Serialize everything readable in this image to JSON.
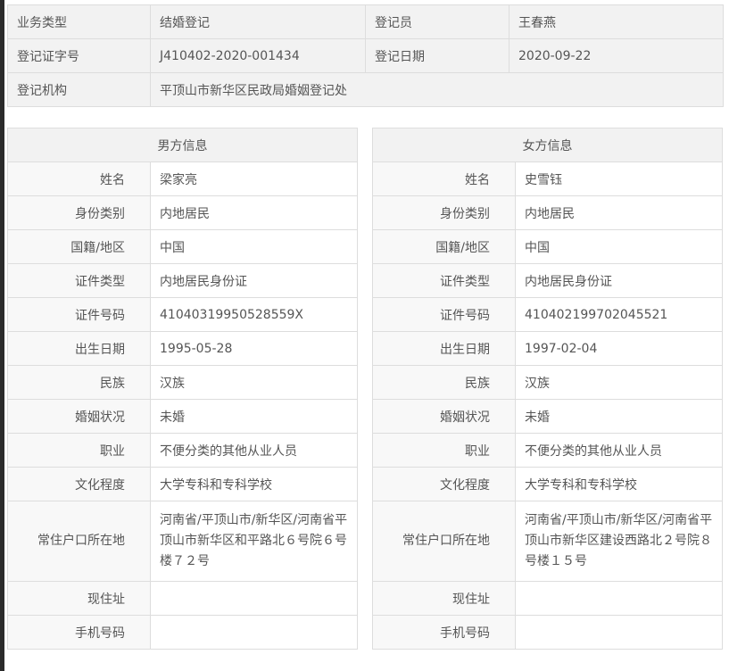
{
  "summary": {
    "business_type_label": "业务类型",
    "business_type": "结婚登记",
    "registrar_label": "登记员",
    "registrar": "王春燕",
    "cert_no_label": "登记证字号",
    "cert_no": "J410402-2020-001434",
    "date_label": "登记日期",
    "date": "2020-09-22",
    "org_label": "登记机构",
    "org": "平顶山市新华区民政局婚姻登记处"
  },
  "labels": [
    "姓名",
    "身份类别",
    "国籍/地区",
    "证件类型",
    "证件号码",
    "出生日期",
    "民族",
    "婚姻状况",
    "职业",
    "文化程度",
    "常住户口所在地",
    "现住址",
    "手机号码"
  ],
  "male": {
    "title": "男方信息",
    "values": [
      "梁家亮",
      "内地居民",
      "中国",
      "内地居民身份证",
      "41040319950528559X",
      "1995-05-28",
      "汉族",
      "未婚",
      "不便分类的其他从业人员",
      "大学专科和专科学校",
      "河南省/平顶山市/新华区/河南省平顶山市新华区和平路北６号院６号楼７２号",
      "",
      ""
    ]
  },
  "female": {
    "title": "女方信息",
    "values": [
      "史雪钰",
      "内地居民",
      "中国",
      "内地居民身份证",
      "410402199702045521",
      "1997-02-04",
      "汉族",
      "未婚",
      "不便分类的其他从业人员",
      "大学专科和专科学校",
      "河南省/平顶山市/新华区/河南省平顶山市新华区建设西路北２号院８号楼１５号",
      "",
      ""
    ]
  }
}
